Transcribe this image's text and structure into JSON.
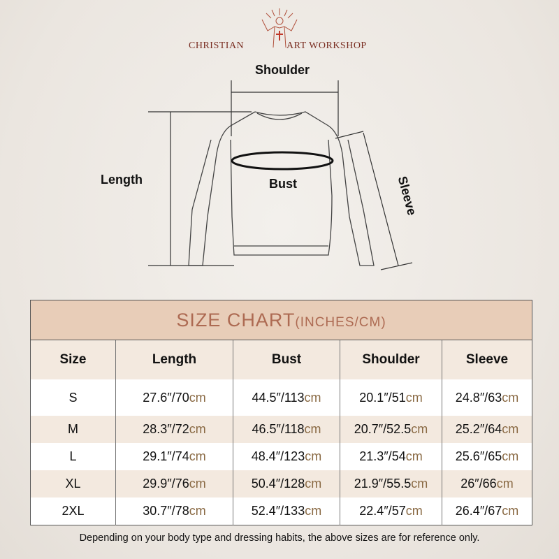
{
  "brand": {
    "left": "CHRISTIAN",
    "right": "ART WORKSHOP",
    "logo_icon": "jesus-with-cross-icon",
    "color": "#7a2e22"
  },
  "diagram": {
    "shoulder": "Shoulder",
    "length": "Length",
    "bust": "Bust",
    "sleeve": "Sleeve"
  },
  "table": {
    "title": "SIZE CHART",
    "title_units": "(INCHES/CM)",
    "columns": [
      "Size",
      "Length",
      "Bust",
      "Shoulder",
      "Sleeve"
    ],
    "rows": [
      {
        "size": "S",
        "cells": [
          [
            "27.6″/70",
            "cm"
          ],
          [
            "44.5″/113",
            "cm"
          ],
          [
            "20.1″/51",
            "cm"
          ],
          [
            "24.8″/63",
            "cm"
          ]
        ]
      },
      {
        "size": "M",
        "cells": [
          [
            "28.3″/72",
            "cm"
          ],
          [
            "46.5″/118",
            "cm"
          ],
          [
            "20.7″/52.5",
            "cm"
          ],
          [
            "25.2″/64",
            "cm"
          ]
        ]
      },
      {
        "size": "L",
        "cells": [
          [
            "29.1″/74",
            "cm"
          ],
          [
            "48.4″/123",
            "cm"
          ],
          [
            "21.3″/54",
            "cm"
          ],
          [
            "25.6″/65",
            "cm"
          ]
        ]
      },
      {
        "size": "XL",
        "cells": [
          [
            "29.9″/76",
            "cm"
          ],
          [
            "50.4″/128",
            "cm"
          ],
          [
            "21.9″/55.5",
            "cm"
          ],
          [
            "26″/66",
            "cm"
          ]
        ]
      },
      {
        "size": "2XL",
        "cells": [
          [
            "30.7″/78",
            "cm"
          ],
          [
            "52.4″/133",
            "cm"
          ],
          [
            "22.4″/57",
            "cm"
          ],
          [
            "26.4″/67",
            "cm"
          ]
        ]
      }
    ],
    "colors": {
      "title_bg": "#e8cdb8",
      "title_text": "#ad6a52",
      "header_bg": "#f3e9df",
      "cm_text": "#8a6a44"
    }
  },
  "note": "Depending on your body type and dressing habits, the above sizes are for reference only."
}
